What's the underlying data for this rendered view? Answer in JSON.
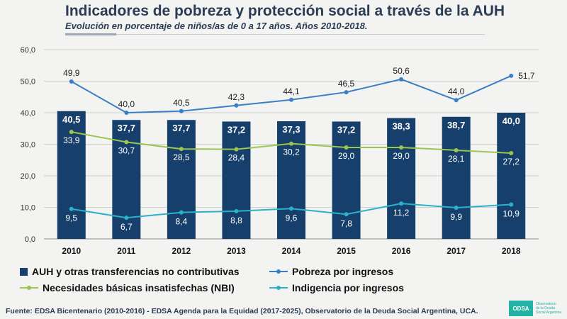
{
  "header": {
    "title": "Indicadores de pobreza y protección social a través de la AUH",
    "subtitle": "Evolución en porcentaje de niños/as de 0 a 17 años. Años  2010-2018."
  },
  "chart_data": {
    "type": "bar",
    "categories": [
      "2010",
      "2011",
      "2012",
      "2013",
      "2014",
      "2015",
      "2016",
      "2017",
      "2018"
    ],
    "ylim": [
      0,
      60
    ],
    "yticks": [
      "0,0",
      "10,0",
      "20,0",
      "30,0",
      "40,0",
      "50,0",
      "60,0"
    ],
    "grid": true,
    "legend_position": "bottom",
    "series": [
      {
        "name": "AUH y otras transferencias no contributivas",
        "kind": "bar",
        "color": "#16406b",
        "values": [
          40.5,
          37.7,
          37.7,
          37.2,
          37.3,
          37.2,
          38.3,
          38.7,
          40.0
        ],
        "labels": [
          "40,5",
          "37,7",
          "37,7",
          "37,2",
          "37,3",
          "37,2",
          "38,3",
          "38,7",
          "40,0"
        ]
      },
      {
        "name": "Pobreza por ingresos",
        "kind": "line",
        "color": "#3a7fc6",
        "values": [
          49.9,
          40.0,
          40.5,
          42.3,
          44.1,
          46.5,
          50.6,
          44.0,
          51.7
        ],
        "labels": [
          "49,9",
          "40,0",
          "40,5",
          "42,3",
          "44,1",
          "46,5",
          "50,6",
          "44,0",
          "51,7"
        ]
      },
      {
        "name": "Necesidades básicas insatisfechas (NBI)",
        "kind": "line",
        "color": "#9bc54f",
        "values": [
          33.9,
          30.7,
          28.5,
          28.4,
          30.2,
          29.0,
          29.0,
          28.1,
          27.2
        ],
        "labels": [
          "33,9",
          "30,7",
          "28,5",
          "28,4",
          "30,2",
          "29,0",
          "29,0",
          "28,1",
          "27,2"
        ]
      },
      {
        "name": "Indigencia por ingresos",
        "kind": "line",
        "color": "#2bb1c9",
        "values": [
          9.5,
          6.7,
          8.4,
          8.8,
          9.6,
          7.8,
          11.2,
          9.9,
          10.9
        ],
        "labels": [
          "9,5",
          "6,7",
          "8,4",
          "8,8",
          "9,6",
          "7,8",
          "11,2",
          "9,9",
          "10,9"
        ]
      }
    ]
  },
  "source": "Fuente: EDSA Bicentenario (2010-2016) - EDSA Agenda para la Equidad (2017-2025), Observatorio de la Deuda Social Argentina, UCA.",
  "logo": {
    "mark": "ODSA",
    "text_lines": [
      "Observatorio",
      "de la Deuda",
      "Social Argentina"
    ]
  }
}
